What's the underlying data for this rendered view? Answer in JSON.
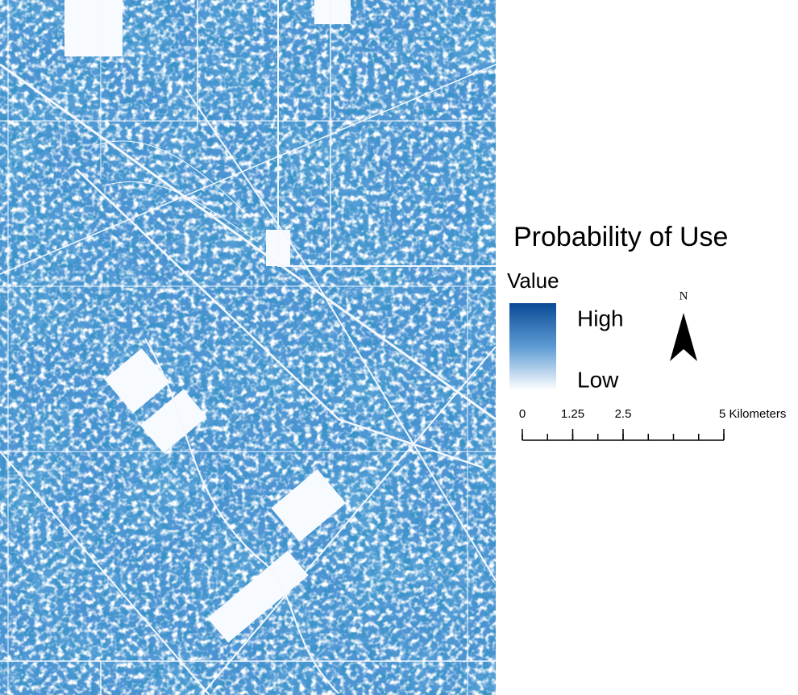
{
  "title": "Probability of Use",
  "legend": {
    "title": "Value",
    "high": "High",
    "low": "Low"
  },
  "north_arrow": {
    "label": "N"
  },
  "scale_bar": {
    "range": [
      0,
      5
    ],
    "ticks": [
      0,
      1.25,
      2.5,
      {
        "value": 5,
        "label": "5 Kilometers"
      }
    ]
  }
}
